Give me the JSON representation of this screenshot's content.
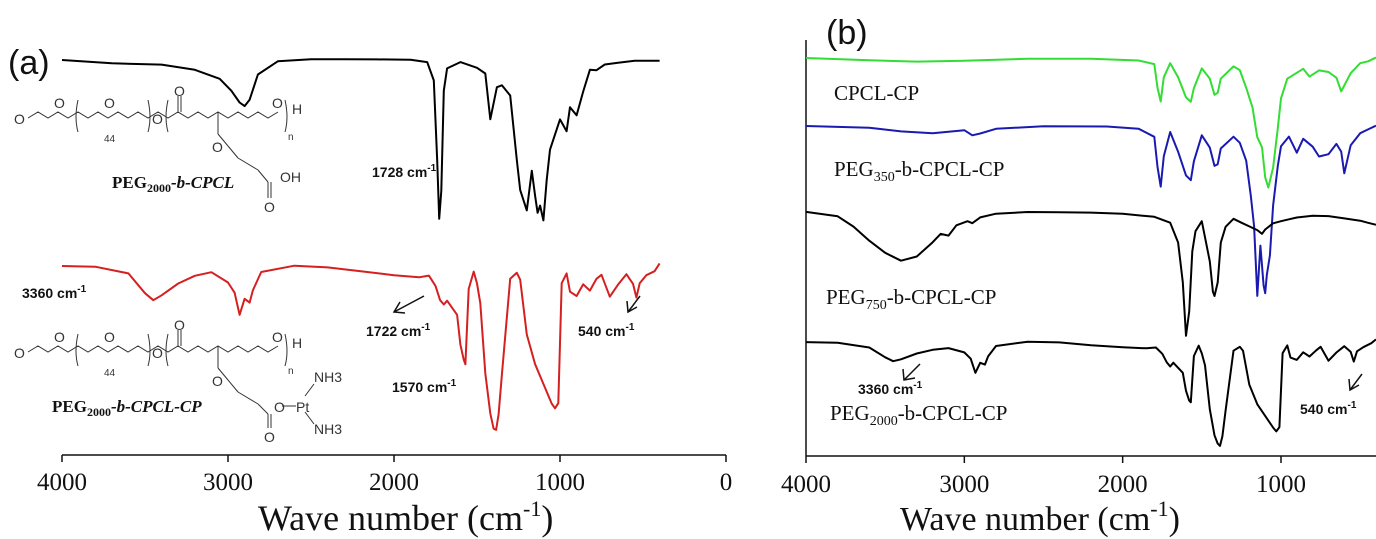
{
  "chart_data": [
    {
      "type": "line",
      "panel": "(a)",
      "xlabel_main": "Wave number (cm",
      "xlabel_sup": "-1",
      "xlabel_end": ")",
      "xlim": [
        4000,
        0
      ],
      "xticks": [
        "4000",
        "3000",
        "2000",
        "1000",
        "0"
      ],
      "series": [
        {
          "name": "PEG2000-b-CPCL",
          "color": "#000000",
          "offset": 0,
          "x": [
            4000,
            3700,
            3400,
            3200,
            3050,
            2980,
            2930,
            2900,
            2870,
            2820,
            2700,
            2500,
            2300,
            2100,
            1900,
            1800,
            1760,
            1740,
            1728,
            1715,
            1700,
            1680,
            1600,
            1500,
            1450,
            1420,
            1380,
            1350,
            1300,
            1260,
            1240,
            1200,
            1170,
            1150,
            1135,
            1120,
            1100,
            1080,
            1060,
            1000,
            960,
            940,
            900,
            860,
            820,
            780,
            730,
            650,
            550,
            400
          ],
          "y": [
            0,
            -3,
            -4,
            -9,
            -18,
            -30,
            -42,
            -46,
            -40,
            -15,
            -2,
            0,
            0,
            0,
            0,
            -2,
            -20,
            -100,
            -158,
            -130,
            -30,
            -8,
            -2,
            -8,
            -14,
            -60,
            -28,
            -26,
            -36,
            -100,
            -130,
            -150,
            -110,
            -135,
            -152,
            -145,
            -160,
            -120,
            -90,
            -60,
            -72,
            -48,
            -56,
            -32,
            -10,
            -10,
            -4,
            -2,
            0,
            0
          ]
        },
        {
          "name": "PEG2000-b-CPCL-CP",
          "color": "#d42020",
          "offset": 0,
          "x": [
            4000,
            3800,
            3600,
            3500,
            3450,
            3400,
            3300,
            3200,
            3100,
            3000,
            2960,
            2930,
            2900,
            2870,
            2850,
            2800,
            2600,
            2400,
            2200,
            2000,
            1850,
            1790,
            1750,
            1722,
            1700,
            1680,
            1620,
            1600,
            1580,
            1570,
            1550,
            1520,
            1500,
            1480,
            1450,
            1420,
            1400,
            1385,
            1370,
            1350,
            1300,
            1260,
            1240,
            1200,
            1150,
            1100,
            1050,
            1030,
            1010,
            990,
            960,
            940,
            900,
            860,
            820,
            780,
            750,
            700,
            650,
            600,
            560,
            540,
            520,
            480,
            430,
            400
          ],
          "y": [
            -2,
            -3,
            -10,
            -30,
            -37,
            -32,
            -20,
            -12,
            -8,
            -18,
            -28,
            -50,
            -34,
            -38,
            -26,
            -8,
            -2,
            -4,
            -8,
            -12,
            -14,
            -12,
            -22,
            -36,
            -40,
            -36,
            -50,
            -80,
            -95,
            -100,
            -25,
            -8,
            -20,
            -40,
            -110,
            -150,
            -165,
            -166,
            -150,
            -110,
            -14,
            -8,
            -15,
            -70,
            -100,
            -120,
            -140,
            -145,
            -140,
            -20,
            -10,
            -28,
            -32,
            -20,
            -26,
            -14,
            -10,
            -32,
            -20,
            -10,
            -20,
            -34,
            -20,
            -12,
            -8,
            0
          ]
        }
      ],
      "annotations": {
        "a1728": "1728 cm",
        "a3360": "3360 cm",
        "a1722": "1722 cm",
        "a540": "540 cm",
        "a1570": "1570 cm",
        "sup": "-1"
      },
      "structures": {
        "s1_name_main": "PEG",
        "s1_name_sub": "2000",
        "s1_name_rest": "-b-CPCL",
        "s2_name_main": "PEG",
        "s2_name_sub": "2000",
        "s2_name_rest": "-b-CPCL-CP",
        "rep": "44",
        "n": "n",
        "h": "H",
        "o": "O",
        "oh": "OH",
        "pt": "Pt",
        "nh3": "NH3"
      }
    },
    {
      "type": "line",
      "panel": "(b)",
      "xlabel_main": "Wave number (cm",
      "xlabel_sup": "-1",
      "xlabel_end": ")",
      "xlim": [
        4000,
        400
      ],
      "xticks": [
        "4000",
        "3000",
        "2000",
        "1000"
      ],
      "series": [
        {
          "name": "CPCL-CP",
          "color": "#33dd33",
          "x": [
            4000,
            3600,
            3300,
            3000,
            2600,
            2200,
            1900,
            1800,
            1780,
            1760,
            1740,
            1700,
            1650,
            1600,
            1570,
            1550,
            1500,
            1450,
            1420,
            1400,
            1380,
            1300,
            1260,
            1220,
            1180,
            1150,
            1120,
            1100,
            1080,
            1050,
            1020,
            1000,
            960,
            900,
            860,
            820,
            760,
            700,
            650,
            620,
            560,
            500,
            450,
            400
          ],
          "y": [
            0,
            -2,
            -3,
            -2,
            0,
            0,
            -2,
            -6,
            -30,
            -44,
            -20,
            -6,
            -20,
            -40,
            -44,
            -30,
            -10,
            -20,
            -36,
            -34,
            -20,
            -8,
            -12,
            -30,
            -50,
            -80,
            -90,
            -120,
            -130,
            -110,
            -70,
            -40,
            -20,
            -14,
            -10,
            -18,
            -12,
            -14,
            -20,
            -34,
            -16,
            -6,
            -4,
            0
          ]
        },
        {
          "name": "PEG350-b-CPCL-CP",
          "color": "#1a1ab0",
          "x": [
            4000,
            3600,
            3400,
            3200,
            3000,
            2950,
            2900,
            2800,
            2500,
            2100,
            1900,
            1800,
            1780,
            1760,
            1740,
            1700,
            1650,
            1600,
            1570,
            1550,
            1500,
            1450,
            1420,
            1400,
            1380,
            1300,
            1260,
            1220,
            1190,
            1170,
            1150,
            1130,
            1110,
            1100,
            1090,
            1070,
            1050,
            1020,
            1000,
            950,
            900,
            860,
            800,
            760,
            700,
            650,
            620,
            600,
            560,
            500,
            450,
            400
          ],
          "y": [
            0,
            -2,
            -6,
            -8,
            -5,
            -10,
            -8,
            -3,
            0,
            0,
            -2,
            -10,
            -40,
            -60,
            -30,
            -6,
            -26,
            -50,
            -55,
            -36,
            -10,
            -22,
            -40,
            -38,
            -22,
            -10,
            -16,
            -34,
            -70,
            -100,
            -170,
            -120,
            -160,
            -168,
            -150,
            -130,
            -80,
            -40,
            -20,
            -10,
            -26,
            -12,
            -20,
            -30,
            -28,
            -18,
            -26,
            -48,
            -20,
            -8,
            -4,
            0
          ]
        },
        {
          "name": "PEG750-b-CPCL-CP",
          "color": "#000000",
          "x": [
            4000,
            3800,
            3700,
            3600,
            3500,
            3400,
            3300,
            3200,
            3150,
            3100,
            3050,
            2980,
            2950,
            2900,
            2800,
            2600,
            2400,
            2200,
            2000,
            1800,
            1700,
            1650,
            1620,
            1600,
            1580,
            1560,
            1540,
            1500,
            1450,
            1430,
            1420,
            1400,
            1380,
            1350,
            1300,
            1250,
            1200,
            1150,
            1120,
            1100,
            1050,
            1000,
            950,
            900,
            800,
            700,
            600,
            500,
            450,
            400
          ],
          "y": [
            0,
            -4,
            -14,
            -28,
            -40,
            -48,
            -44,
            -30,
            -22,
            -24,
            -14,
            -10,
            -12,
            -6,
            -2,
            0,
            0,
            0,
            -1,
            -4,
            -10,
            -30,
            -70,
            -124,
            -100,
            -40,
            -20,
            -10,
            -50,
            -80,
            -84,
            -70,
            -30,
            -14,
            -6,
            -10,
            -14,
            -18,
            -22,
            -18,
            -12,
            -10,
            -8,
            -6,
            -4,
            -4,
            -6,
            -8,
            -10,
            -12
          ]
        },
        {
          "name": "PEG2000-b-CPCL-CP",
          "color": "#000000",
          "x": [
            4000,
            3800,
            3600,
            3500,
            3450,
            3400,
            3300,
            3200,
            3100,
            3000,
            2960,
            2930,
            2900,
            2870,
            2850,
            2800,
            2600,
            2400,
            2200,
            2000,
            1850,
            1790,
            1750,
            1722,
            1700,
            1680,
            1620,
            1600,
            1580,
            1570,
            1550,
            1520,
            1500,
            1480,
            1450,
            1420,
            1400,
            1385,
            1370,
            1350,
            1300,
            1260,
            1240,
            1200,
            1150,
            1100,
            1050,
            1030,
            1010,
            990,
            960,
            940,
            900,
            860,
            820,
            780,
            750,
            700,
            650,
            600,
            560,
            540,
            520,
            480,
            430,
            400
          ],
          "y": [
            -2,
            -3,
            -8,
            -18,
            -22,
            -20,
            -14,
            -10,
            -8,
            -12,
            -18,
            -32,
            -22,
            -24,
            -16,
            -6,
            -2,
            -3,
            -6,
            -8,
            -9,
            -8,
            -14,
            -22,
            -26,
            -22,
            -32,
            -50,
            -60,
            -62,
            -16,
            -6,
            -14,
            -26,
            -70,
            -96,
            -104,
            -106,
            -96,
            -70,
            -10,
            -6,
            -10,
            -44,
            -64,
            -76,
            -88,
            -92,
            -88,
            -14,
            -6,
            -18,
            -20,
            -12,
            -16,
            -10,
            -6,
            -20,
            -12,
            -6,
            -12,
            -22,
            -12,
            -8,
            -4,
            0
          ]
        }
      ],
      "annotations": {
        "a3360": "3360 cm",
        "a540": "540 cm",
        "sup": "-1"
      },
      "series_labels": {
        "l1": "CPCL-CP",
        "l2_main": "PEG",
        "l2_sub": "350",
        "l2_rest": "-b-CPCL-CP",
        "l3_main": "PEG",
        "l3_sub": "750",
        "l3_rest": "-b-CPCL-CP",
        "l4_main": "PEG",
        "l4_sub": "2000",
        "l4_rest": "-b-CPCL-CP"
      }
    }
  ]
}
